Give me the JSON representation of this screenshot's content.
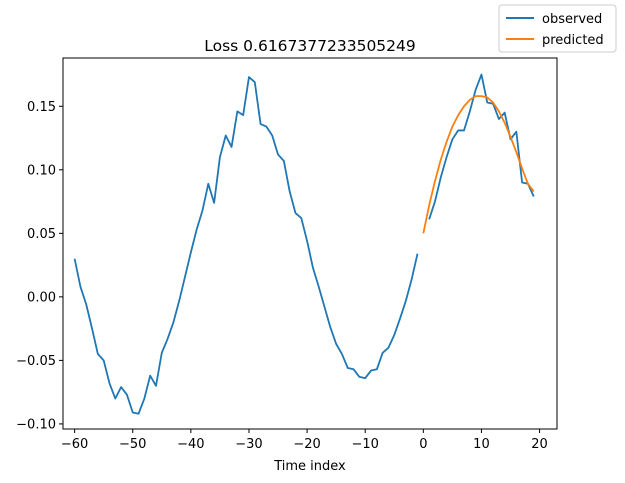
{
  "chart_data": {
    "type": "line",
    "title": "Loss 0.6167377233505249",
    "xlabel": "Time index",
    "ylabel": "",
    "xlim": [
      -62,
      23
    ],
    "ylim": [
      -0.104,
      0.188
    ],
    "xticks": [
      -60,
      -50,
      -40,
      -30,
      -20,
      -10,
      0,
      10,
      20
    ],
    "yticks": [
      -0.1,
      -0.05,
      0.0,
      0.05,
      0.1,
      0.15
    ],
    "ytick_labels": [
      "-0.10",
      "-0.05",
      "0.00",
      "0.05",
      "0.10",
      "0.15"
    ],
    "grid": false,
    "legend_position": "top-right (outside axes)",
    "series": [
      {
        "name": "observed",
        "color": "#1f77b4",
        "x": [
          -60,
          -59,
          -58,
          -57,
          -56,
          -55,
          -54,
          -53,
          -52,
          -51,
          -50,
          -49,
          -48,
          -47,
          -46,
          -45,
          -44,
          -43,
          -42,
          -41,
          -40,
          -39,
          -38,
          -37,
          -36,
          -35,
          -34,
          -33,
          -32,
          -31,
          -30,
          -29,
          -28,
          -27,
          -26,
          -25,
          -24,
          -23,
          -22,
          -21,
          -20,
          -19,
          -18,
          -17,
          -16,
          -15,
          -14,
          -13,
          -12,
          -11,
          -10,
          -9,
          -8,
          -7,
          -6,
          -5,
          -4,
          -3,
          -2,
          -1,
          0,
          1,
          2,
          3,
          4,
          5,
          6,
          7,
          8,
          9,
          10,
          11,
          12,
          13,
          14,
          15,
          16,
          17,
          18,
          19
        ],
        "y": [
          0.03,
          0.008,
          -0.006,
          -0.025,
          -0.045,
          -0.05,
          -0.068,
          -0.08,
          -0.071,
          -0.077,
          -0.091,
          -0.092,
          -0.08,
          -0.062,
          -0.07,
          -0.044,
          -0.033,
          -0.02,
          -0.003,
          0.016,
          0.035,
          0.053,
          0.068,
          0.089,
          0.074,
          0.11,
          0.127,
          0.118,
          0.146,
          0.143,
          0.173,
          0.169,
          0.136,
          0.134,
          0.127,
          0.112,
          0.107,
          0.083,
          0.066,
          0.062,
          0.044,
          0.023,
          0.008,
          -0.008,
          -0.024,
          -0.037,
          -0.045,
          -0.056,
          -0.057,
          -0.063,
          -0.064,
          -0.058,
          -0.057,
          -0.044,
          -0.04,
          -0.03,
          -0.017,
          -0.003,
          0.014,
          0.034,
          null,
          0.061,
          0.075,
          0.094,
          0.11,
          0.124,
          0.131,
          0.131,
          0.146,
          0.163,
          0.175,
          0.153,
          0.152,
          0.14,
          0.145,
          0.124,
          0.13,
          0.09,
          0.089,
          0.079
        ]
      },
      {
        "name": "predicted",
        "color": "#ff7f0e",
        "x": [
          0,
          1,
          2,
          3,
          4,
          5,
          6,
          7,
          8,
          9,
          10,
          11,
          12,
          13,
          14,
          15,
          16,
          17,
          18,
          19
        ],
        "y": [
          0.05,
          0.072,
          0.091,
          0.108,
          0.122,
          0.134,
          0.143,
          0.15,
          0.155,
          0.158,
          0.158,
          0.157,
          0.153,
          0.146,
          0.137,
          0.126,
          0.114,
          0.101,
          0.089,
          0.083
        ]
      }
    ]
  }
}
